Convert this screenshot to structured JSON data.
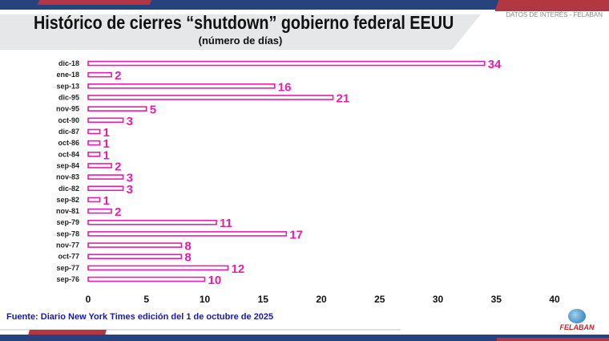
{
  "header": {
    "title": "Histórico de cierres “shutdown” gobierno federal EEUU",
    "subtitle": "(número de días)",
    "tag": "DATOS DE INTERÉS - FELABAN"
  },
  "footer": {
    "source": "Fuente: Diario New York Times edición del 1 de octubre de 2025",
    "logo": "FELABAN"
  },
  "colors": {
    "bar": "#e61eaa",
    "navy": "#26437d",
    "red": "#b33743"
  },
  "chart_data": {
    "type": "bar",
    "orientation": "horizontal",
    "title": "Histórico de cierres “shutdown” gobierno federal EEUU",
    "subtitle": "(número de días)",
    "categories": [
      "dic-18",
      "ene-18",
      "sep-13",
      "dic-95",
      "nov-95",
      "oct-90",
      "dic-87",
      "oct-86",
      "oct-84",
      "sep-84",
      "nov-83",
      "dic-82",
      "sep-82",
      "nov-81",
      "sep-79",
      "sep-78",
      "nov-77",
      "oct-77",
      "sep-77",
      "sep-76"
    ],
    "values": [
      34,
      2,
      16,
      21,
      5,
      3,
      1,
      1,
      1,
      2,
      3,
      3,
      1,
      2,
      11,
      17,
      8,
      8,
      12,
      10
    ],
    "xlim": [
      0,
      40
    ],
    "xticks": [
      0,
      5,
      10,
      15,
      20,
      25,
      30,
      35,
      40
    ],
    "grid": false,
    "legend": "none"
  }
}
